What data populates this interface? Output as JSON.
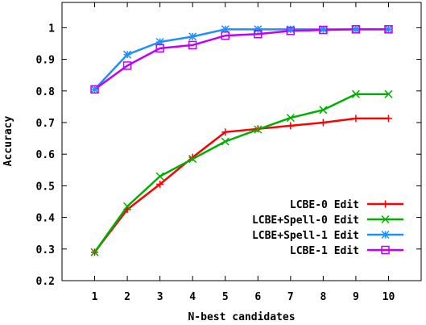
{
  "chart_data": {
    "type": "line",
    "xlabel": "N-best candidates",
    "ylabel": "Accuracy",
    "x": [
      1,
      2,
      3,
      4,
      5,
      6,
      7,
      8,
      9,
      10
    ],
    "x_ticks": [
      "1",
      "2",
      "3",
      "4",
      "5",
      "6",
      "7",
      "8",
      "9",
      "10"
    ],
    "y_ticks": [
      "0.2",
      "0.3",
      "0.4",
      "0.5",
      "0.6",
      "0.7",
      "0.8",
      "0.9",
      "1"
    ],
    "xlim": [
      0,
      11
    ],
    "ylim": [
      0.2,
      1.08
    ],
    "grid": false,
    "legend_position": "bottom-right",
    "series": [
      {
        "name": "LCBE-0 Edit",
        "color": "#ff0000",
        "marker": "plus",
        "values": [
          0.29,
          0.425,
          0.505,
          0.59,
          0.67,
          0.68,
          0.69,
          0.7,
          0.713,
          0.713
        ]
      },
      {
        "name": "LCBE+Spell-0 Edit",
        "color": "#00b000",
        "marker": "x",
        "values": [
          0.29,
          0.435,
          0.53,
          0.585,
          0.64,
          0.678,
          0.715,
          0.74,
          0.79,
          0.79
        ]
      },
      {
        "name": "LCBE+Spell-1 Edit",
        "color": "#1e90ff",
        "marker": "star",
        "values": [
          0.805,
          0.915,
          0.955,
          0.972,
          0.995,
          0.995,
          0.995,
          0.995,
          0.995,
          0.995
        ]
      },
      {
        "name": "LCBE-1 Edit",
        "color": "#c000ff",
        "marker": "square",
        "values": [
          0.805,
          0.88,
          0.935,
          0.945,
          0.975,
          0.98,
          0.99,
          0.993,
          0.995,
          0.995
        ]
      }
    ]
  }
}
